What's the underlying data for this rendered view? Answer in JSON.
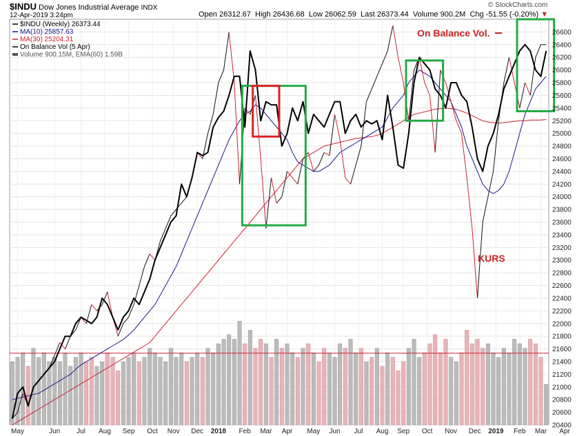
{
  "chart_data": {
    "type": "line",
    "header": {
      "symbol": "$INDU",
      "name": "Dow Jones Industrial Average",
      "exchange": "INDX",
      "date": "12-Apr-2019 3:24pm",
      "open_label": "Open",
      "open": "26312.67",
      "high_label": "High",
      "high": "26436.68",
      "low_label": "Low",
      "low": "26062.59",
      "last_label": "Last",
      "last": "26373.44",
      "volume_label": "Volume",
      "volume": "900.2M",
      "chg_label": "Chg",
      "chg": "-51.55 (-0.20%)",
      "source": "© StockCharts.com"
    },
    "legend": [
      {
        "text": "$INDU (Weekly) 26373.44",
        "color": "#000000"
      },
      {
        "text": "MA(10) 25857.63",
        "color": "#1a1a8c"
      },
      {
        "text": "MA(30) 25204.31",
        "color": "#cc2233"
      },
      {
        "text": "On Balance Vol (5 Apr)",
        "color": "#000000"
      },
      {
        "text": "Volume 900.15M, EMA(60) 1.59B",
        "color": "#555555"
      }
    ],
    "annotations": {
      "obv_label": "On Balance Vol.",
      "kurs_label": "KURS"
    },
    "y_axis": {
      "min": 20400,
      "max": 26800,
      "ticks": [
        20400,
        20600,
        20800,
        21000,
        21200,
        21400,
        21600,
        21800,
        22000,
        22200,
        22400,
        22600,
        22800,
        23000,
        23200,
        23400,
        23600,
        23800,
        24000,
        24200,
        24400,
        24600,
        24800,
        25000,
        25200,
        25400,
        25600,
        25800,
        26000,
        26200,
        26400,
        26600
      ]
    },
    "x_axis": {
      "labels": [
        "May",
        "Jun",
        "Jul",
        "Aug",
        "Sep",
        "Oct",
        "Nov",
        "Dec",
        "2018",
        "Feb",
        "Mar",
        "Apr",
        "May",
        "Jun",
        "Jul",
        "Aug",
        "Sep",
        "Oct",
        "Nov",
        "Dec",
        "2019",
        "Feb",
        "Mar",
        "Apr"
      ],
      "label_weeks": [
        1,
        8,
        13,
        17.5,
        22,
        26.5,
        30.5,
        35,
        39,
        44,
        48,
        52,
        57,
        61,
        65.5,
        70,
        74,
        78.5,
        83,
        87.5,
        91.5,
        96,
        100,
        104.5
      ]
    },
    "price": [
      20500,
      20900,
      21000,
      20700,
      21000,
      21100,
      21200,
      21300,
      21400,
      21600,
      21800,
      21800,
      22000,
      22100,
      22050,
      22000,
      22100,
      22400,
      22300,
      22100,
      21900,
      22100,
      22200,
      22400,
      22300,
      22500,
      22700,
      23000,
      23200,
      23400,
      23600,
      23700,
      24200,
      24000,
      24300,
      24700,
      24650,
      24700,
      25100,
      25250,
      25350,
      25600,
      25900,
      25900,
      25100,
      26300,
      26000,
      25200,
      25500,
      25450,
      25450,
      24800,
      25000,
      25400,
      25200,
      25500,
      25000,
      25300,
      25200,
      25100,
      25300,
      25500,
      25500,
      25000,
      25200,
      25300,
      25100,
      25200,
      25150,
      25200,
      24900,
      25600,
      25100,
      24500,
      24450,
      25000,
      25800,
      26200,
      26100,
      26000,
      25700,
      25600,
      25400,
      25800,
      25800,
      25600,
      25500,
      25100,
      24600,
      24400,
      24800,
      25000,
      25300,
      25700,
      25900,
      26100,
      26300,
      26400,
      26300,
      26000,
      25900,
      26300
    ],
    "ma10": [
      20800,
      20820,
      20840,
      20860,
      20880,
      20900,
      20950,
      21000,
      21050,
      21100,
      21150,
      21200,
      21280,
      21350,
      21400,
      21450,
      21500,
      21550,
      21600,
      21650,
      21700,
      21750,
      21820,
      21900,
      22000,
      22100,
      22200,
      22300,
      22450,
      22600,
      22750,
      22900,
      23100,
      23300,
      23500,
      23700,
      23900,
      24100,
      24300,
      24500,
      24700,
      24900,
      25050,
      25200,
      25300,
      25350,
      25450,
      25400,
      25300,
      25200,
      25100,
      25000,
      24900,
      24700,
      24550,
      24500,
      24450,
      24400,
      24400,
      24450,
      24500,
      24600,
      24700,
      24750,
      24800,
      24850,
      24900,
      24950,
      25000,
      25050,
      25100,
      25250,
      25400,
      25500,
      25600,
      25800,
      25900,
      26000,
      25950,
      25900,
      25800,
      25700,
      25600,
      25500,
      25300,
      25100,
      24800,
      24600,
      24400,
      24200,
      24100,
      24050,
      24100,
      24200,
      24400,
      24700,
      25000,
      25300,
      25500,
      25700,
      25800,
      25900
    ],
    "ma30": [
      20400,
      20450,
      20500,
      20550,
      20600,
      20650,
      20700,
      20750,
      20800,
      20850,
      20900,
      20950,
      21000,
      21050,
      21100,
      21150,
      21200,
      21250,
      21300,
      21350,
      21400,
      21450,
      21500,
      21550,
      21600,
      21650,
      21700,
      21800,
      21900,
      22000,
      22100,
      22200,
      22300,
      22400,
      22500,
      22600,
      22700,
      22800,
      22900,
      23000,
      23100,
      23200,
      23300,
      23400,
      23500,
      23600,
      23700,
      23800,
      23900,
      24000,
      24100,
      24200,
      24300,
      24400,
      24500,
      24600,
      24650,
      24700,
      24750,
      24800,
      24820,
      24840,
      24860,
      24880,
      24900,
      24920,
      24930,
      24940,
      24950,
      24970,
      25000,
      25050,
      25100,
      25150,
      25200,
      25250,
      25300,
      25320,
      25340,
      25360,
      25380,
      25390,
      25400,
      25390,
      25380,
      25350,
      25320,
      25280,
      25240,
      25200,
      25180,
      25170,
      25160,
      25170,
      25180,
      25190,
      25200,
      25200,
      25210,
      25210,
      25210,
      25220
    ],
    "obv": [
      20500,
      20600,
      20900,
      20700,
      21000,
      21100,
      21200,
      21300,
      21500,
      21700,
      21600,
      21800,
      21900,
      22100,
      22000,
      22300,
      22200,
      22300,
      22500,
      22100,
      21800,
      22000,
      22100,
      22300,
      22600,
      22900,
      23100,
      23000,
      23300,
      23500,
      23700,
      23800,
      23900,
      24000,
      24300,
      24700,
      24600,
      25000,
      25300,
      25800,
      26000,
      26600,
      25800,
      24200,
      25400,
      25300,
      25600,
      24600,
      23500,
      24300,
      23900,
      24000,
      24400,
      24300,
      24200,
      24600,
      24700,
      24400,
      24500,
      24700,
      24650,
      25300,
      24900,
      24300,
      24200,
      24500,
      24800,
      25500,
      25700,
      25900,
      26100,
      26300,
      26700,
      26200,
      25800,
      25200,
      26000,
      26200,
      25800,
      25600,
      24700,
      26000,
      25800,
      25500,
      25200,
      25000,
      24300,
      23500,
      22400,
      23600,
      24000,
      24400,
      25200,
      25800,
      26200,
      25800,
      25400,
      25800,
      25600,
      26200,
      26400,
      26400
    ],
    "volume_millions": [
      1400,
      1500,
      1600,
      1300,
      1700,
      1500,
      1600,
      1400,
      1500,
      1400,
      1600,
      1300,
      1500,
      1600,
      1400,
      1500,
      1300,
      1400,
      1600,
      1500,
      1200,
      1400,
      1500,
      1600,
      1400,
      1500,
      1700,
      1600,
      1500,
      1400,
      1700,
      1500,
      1600,
      1400,
      1500,
      1600,
      1500,
      1700,
      1600,
      1800,
      1900,
      2000,
      1900,
      2300,
      1800,
      2100,
      1700,
      1900,
      1800,
      1500,
      1900,
      1700,
      1800,
      1600,
      1500,
      1700,
      1800,
      1600,
      1400,
      1700,
      1600,
      1500,
      1800,
      1700,
      1900,
      1600,
      1700,
      1400,
      1500,
      1700,
      1300,
      1600,
      1500,
      1200,
      1400,
      1700,
      1900,
      1500,
      1600,
      1800,
      2000,
      1600,
      1900,
      1500,
      1400,
      1600,
      2100,
      1800,
      1900,
      1700,
      1800,
      1600,
      1500,
      1700,
      1600,
      1900,
      1800,
      1700,
      1900,
      1800,
      1500,
      900
    ],
    "volume_ema": 1590,
    "highlight_boxes": [
      {
        "label": "green-box-1",
        "color": "#22aa44",
        "week_start": 43.5,
        "week_end": 55.5,
        "y_top": 25750,
        "y_bottom": 23550
      },
      {
        "label": "red-box",
        "color": "#dd2222",
        "week_start": 45.5,
        "week_end": 50.5,
        "y_top": 25750,
        "y_bottom": 24950
      },
      {
        "label": "green-box-2",
        "color": "#22aa44",
        "week_start": 74.5,
        "week_end": 81.5,
        "y_top": 26150,
        "y_bottom": 25200
      },
      {
        "label": "green-box-3",
        "color": "#22aa44",
        "week_start": 95.5,
        "week_end": 102.5,
        "y_top": 26800,
        "y_bottom": 25350
      }
    ]
  }
}
